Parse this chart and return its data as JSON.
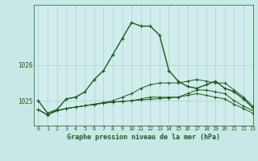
{
  "title": "Graphe pression niveau de la mer (hPa)",
  "background_color": "#c8e8e8",
  "plot_bg_color": "#d0ecec",
  "grid_color": "#b0d0d0",
  "line_color": "#1a5c1a",
  "xlim": [
    -0.5,
    23
  ],
  "ylim": [
    1024.3,
    1027.7
  ],
  "yticks": [
    1025,
    1026
  ],
  "xticks": [
    0,
    1,
    2,
    3,
    4,
    5,
    6,
    7,
    8,
    9,
    10,
    11,
    12,
    13,
    14,
    15,
    16,
    17,
    18,
    19,
    20,
    21,
    22,
    23
  ],
  "hours": [
    0,
    1,
    2,
    3,
    4,
    5,
    6,
    7,
    8,
    9,
    10,
    11,
    12,
    13,
    14,
    15,
    16,
    17,
    18,
    19,
    20,
    21,
    22,
    23
  ],
  "series1": [
    1025.0,
    1024.65,
    1024.75,
    1025.05,
    1025.1,
    1025.25,
    1025.6,
    1025.85,
    1026.3,
    1026.75,
    1027.2,
    1027.1,
    1027.1,
    1026.85,
    1025.85,
    1025.55,
    1025.4,
    1025.35,
    1025.45,
    1025.55,
    1025.35,
    1025.25,
    1025.05,
    1024.8
  ],
  "series2": [
    1024.75,
    1024.6,
    1024.72,
    1024.78,
    1024.82,
    1024.86,
    1024.9,
    1024.93,
    1024.96,
    1024.98,
    1025.0,
    1025.02,
    1025.04,
    1025.06,
    1025.08,
    1025.1,
    1025.2,
    1025.3,
    1025.3,
    1025.25,
    1025.2,
    1025.0,
    1024.85,
    1024.72
  ],
  "series3": [
    1024.75,
    1024.6,
    1024.72,
    1024.78,
    1024.82,
    1024.86,
    1024.9,
    1024.95,
    1025.0,
    1025.1,
    1025.2,
    1025.35,
    1025.45,
    1025.5,
    1025.5,
    1025.5,
    1025.55,
    1025.6,
    1025.55,
    1025.5,
    1025.5,
    1025.3,
    1025.1,
    1024.85
  ],
  "series4": [
    1024.75,
    1024.6,
    1024.72,
    1024.78,
    1024.82,
    1024.86,
    1024.9,
    1024.93,
    1024.96,
    1024.98,
    1025.0,
    1025.05,
    1025.1,
    1025.1,
    1025.1,
    1025.1,
    1025.15,
    1025.2,
    1025.15,
    1025.1,
    1025.05,
    1024.9,
    1024.78,
    1024.65
  ]
}
